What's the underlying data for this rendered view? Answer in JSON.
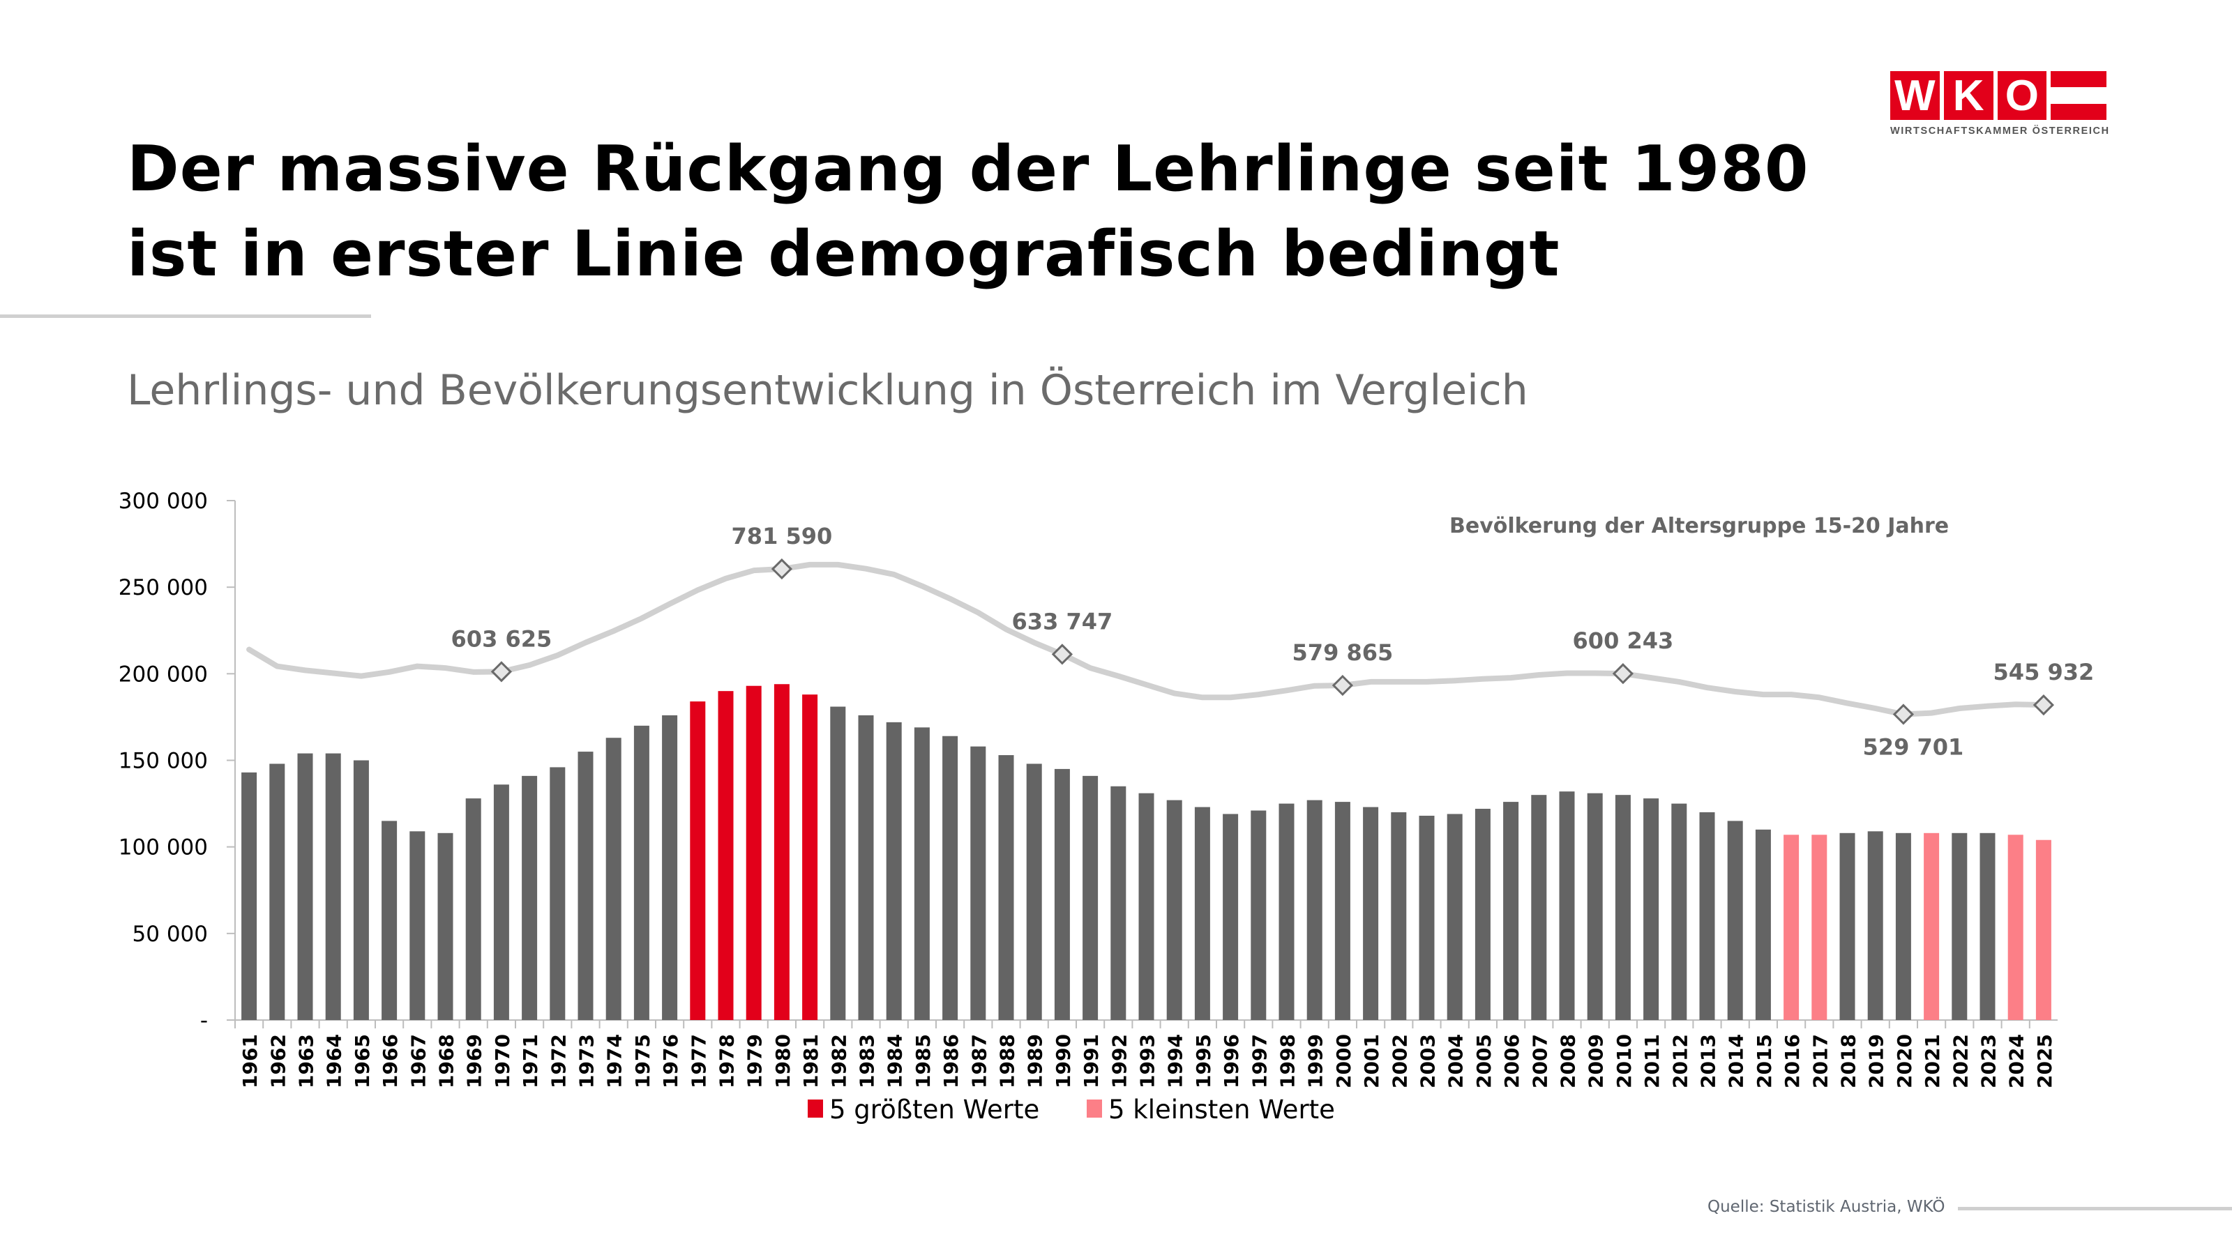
{
  "header": {
    "title": "Der massive Rückgang der Lehrlinge seit 1980 ist in erster Linie demografisch bedingt",
    "subtitle": "Lehrlings- und Bevölkerungsentwicklung in Österreich im Vergleich"
  },
  "logo": {
    "letters": [
      "W",
      "K",
      "O"
    ],
    "text": "WIRTSCHAFTSKAMMER ÖSTERREICH",
    "color": "#e2001a"
  },
  "source": "Quelle:  Statistik Austria, WKÖ",
  "chart_data": {
    "type": "bar",
    "title": "",
    "xlabel": "",
    "ylabel": "",
    "ylim": [
      0,
      300000
    ],
    "y_ticks": [
      0,
      50000,
      100000,
      150000,
      200000,
      250000,
      300000
    ],
    "y_tick_labels": [
      "-",
      "50 000",
      "100 000",
      "150 000",
      "200 000",
      "250 000",
      "300 000"
    ],
    "grid": false,
    "categories": [
      "1961",
      "1962",
      "1963",
      "1964",
      "1965",
      "1966",
      "1967",
      "1968",
      "1969",
      "1970",
      "1971",
      "1972",
      "1973",
      "1974",
      "1975",
      "1976",
      "1977",
      "1978",
      "1979",
      "1980",
      "1981",
      "1982",
      "1983",
      "1984",
      "1985",
      "1986",
      "1987",
      "1988",
      "1989",
      "1990",
      "1991",
      "1992",
      "1993",
      "1994",
      "1995",
      "1996",
      "1997",
      "1998",
      "1999",
      "2000",
      "2001",
      "2002",
      "2003",
      "2004",
      "2005",
      "2006",
      "2007",
      "2008",
      "2009",
      "2010",
      "2011",
      "2012",
      "2013",
      "2014",
      "2015",
      "2016",
      "2017",
      "2018",
      "2019",
      "2020",
      "2021",
      "2022",
      "2023",
      "2024",
      "2025"
    ],
    "series": [
      {
        "type": "bar",
        "values": [
          143000,
          148000,
          154000,
          154000,
          150000,
          115000,
          109000,
          108000,
          128000,
          136000,
          141000,
          146000,
          155000,
          163000,
          170000,
          176000,
          184000,
          190000,
          193000,
          194000,
          188000,
          181000,
          176000,
          172000,
          169000,
          164000,
          158000,
          153000,
          148000,
          145000,
          141000,
          135000,
          131000,
          127000,
          123000,
          119000,
          121000,
          125000,
          127000,
          126000,
          123000,
          120000,
          118000,
          119000,
          122000,
          126000,
          130000,
          132000,
          131000,
          130000,
          128000,
          125000,
          120000,
          115000,
          110000,
          107000,
          107000,
          108000,
          109000,
          108000,
          108000,
          108000,
          108000,
          107000,
          104000
        ],
        "colors": {
          "default": "#646464",
          "largest": "#e2001a",
          "smallest": "#fc7f87"
        },
        "largest_5": [
          "1977",
          "1978",
          "1979",
          "1980",
          "1981"
        ],
        "smallest_5": [
          "2016",
          "2017",
          "2021",
          "2024",
          "2025"
        ]
      },
      {
        "type": "line",
        "name": "Bevölkerung der Altersgruppe 15-20 Jahre",
        "axis": "secondary",
        "ylim": [
          0,
          900000
        ],
        "color": "#d0d0d0",
        "values": [
          642000,
          613000,
          606000,
          601000,
          596000,
          603000,
          613000,
          610000,
          603000,
          603625,
          615000,
          632000,
          654000,
          674000,
          696000,
          721000,
          745000,
          765000,
          779000,
          781590,
          789000,
          789000,
          782000,
          772000,
          752000,
          730000,
          706000,
          677000,
          654000,
          633747,
          610000,
          596000,
          581000,
          566000,
          559000,
          559000,
          564000,
          571000,
          579000,
          579865,
          586000,
          586000,
          586000,
          588000,
          591000,
          593000,
          598000,
          601000,
          601000,
          600243,
          593000,
          586000,
          576000,
          569000,
          564000,
          564000,
          559000,
          549000,
          540000,
          529701,
          532000,
          540000,
          544000,
          547000,
          545932
        ],
        "labeled_points": [
          {
            "year": "1970",
            "label": "603 625",
            "pos": "above"
          },
          {
            "year": "1980",
            "label": "781 590",
            "pos": "above"
          },
          {
            "year": "1990",
            "label": "633 747",
            "pos": "above"
          },
          {
            "year": "2000",
            "label": "579 865",
            "pos": "above"
          },
          {
            "year": "2010",
            "label": "600 243",
            "pos": "above"
          },
          {
            "year": "2020",
            "label": "529 701",
            "pos": "below"
          },
          {
            "year": "2025",
            "label": "545 932",
            "pos": "above"
          }
        ]
      }
    ],
    "legend": {
      "position": "bottom",
      "items": [
        {
          "label": "5 größten Werte",
          "color": "#e2001a"
        },
        {
          "label": "5 kleinsten Werte",
          "color": "#fc7f87"
        }
      ]
    }
  }
}
